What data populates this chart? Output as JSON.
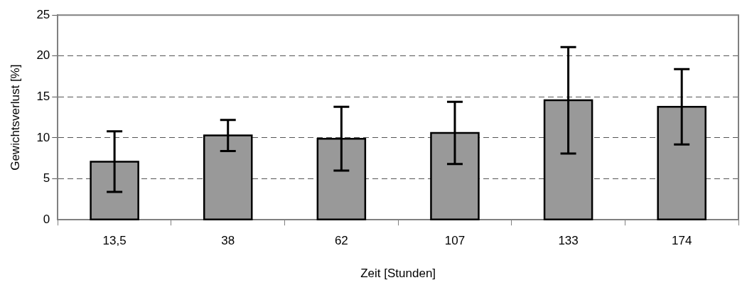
{
  "chart_data": {
    "type": "bar",
    "xlabel": "Zeit [Stunden]",
    "ylabel": "Gewichtsverlust [%]",
    "categories": [
      "13,5",
      "38",
      "62",
      "107",
      "133",
      "174"
    ],
    "values": [
      7.1,
      10.3,
      9.9,
      10.6,
      14.6,
      13.8
    ],
    "errors": [
      3.7,
      1.9,
      3.9,
      3.8,
      6.5,
      4.6
    ],
    "color": "#999999",
    "ylim": [
      0,
      25
    ],
    "yticks": [
      0,
      5,
      10,
      15,
      20,
      25
    ],
    "grid": "y",
    "legend": false
  }
}
